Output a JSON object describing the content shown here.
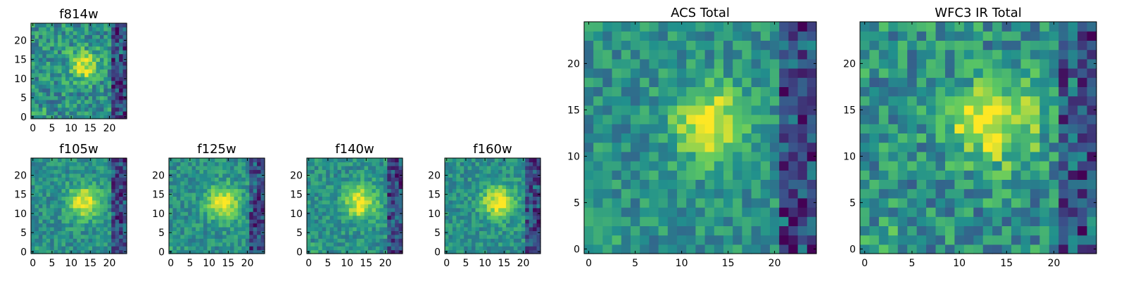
{
  "chart_data": [
    {
      "type": "heatmap",
      "title": "f814w",
      "xlim": [
        0,
        25
      ],
      "ylim": [
        0,
        25
      ],
      "xticks": [
        0,
        5,
        10,
        15,
        20
      ],
      "yticks": [
        0,
        5,
        10,
        15,
        20
      ],
      "peak": [
        13,
        13.5
      ],
      "sigma": 2.6,
      "noise": 0.2,
      "seed": 11,
      "dark_right_edge": true
    },
    {
      "type": "heatmap",
      "title": "f105w",
      "xlim": [
        0,
        25
      ],
      "ylim": [
        0,
        25
      ],
      "xticks": [
        0,
        5,
        10,
        15,
        20
      ],
      "yticks": [
        0,
        5,
        10,
        15,
        20
      ],
      "peak": [
        13.5,
        13
      ],
      "sigma": 3.0,
      "noise": 0.14,
      "seed": 23,
      "dark_right_edge": true
    },
    {
      "type": "heatmap",
      "title": "f125w",
      "xlim": [
        0,
        25
      ],
      "ylim": [
        0,
        25
      ],
      "xticks": [
        0,
        5,
        10,
        15,
        20
      ],
      "yticks": [
        0,
        5,
        10,
        15,
        20
      ],
      "peak": [
        13.5,
        13
      ],
      "sigma": 3.0,
      "noise": 0.14,
      "seed": 37,
      "dark_right_edge": true
    },
    {
      "type": "heatmap",
      "title": "f140w",
      "xlim": [
        0,
        25
      ],
      "ylim": [
        0,
        25
      ],
      "xticks": [
        0,
        5,
        10,
        15,
        20
      ],
      "yticks": [
        0,
        5,
        10,
        15,
        20
      ],
      "peak": [
        13.5,
        13
      ],
      "sigma": 3.0,
      "noise": 0.14,
      "seed": 41,
      "dark_right_edge": true
    },
    {
      "type": "heatmap",
      "title": "f160w",
      "xlim": [
        0,
        25
      ],
      "ylim": [
        0,
        25
      ],
      "xticks": [
        0,
        5,
        10,
        15,
        20
      ],
      "yticks": [
        0,
        5,
        10,
        15,
        20
      ],
      "peak": [
        13.5,
        13
      ],
      "sigma": 3.0,
      "noise": 0.14,
      "seed": 53,
      "dark_right_edge": true
    },
    {
      "type": "heatmap",
      "title": "ACS Total",
      "xlim": [
        0,
        25
      ],
      "ylim": [
        0,
        25
      ],
      "xticks": [
        0,
        5,
        10,
        15,
        20
      ],
      "yticks": [
        0,
        5,
        10,
        15,
        20
      ],
      "peak": [
        13,
        13.5
      ],
      "sigma": 2.8,
      "noise": 0.16,
      "seed": 67,
      "dark_right_edge": true
    },
    {
      "type": "heatmap",
      "title": "WFC3 IR Total",
      "xlim": [
        0,
        25
      ],
      "ylim": [
        0,
        25
      ],
      "xticks": [
        0,
        5,
        10,
        15,
        20
      ],
      "yticks": [
        0,
        5,
        10,
        15,
        20
      ],
      "peak": [
        13.5,
        13.5
      ],
      "sigma": 3.2,
      "noise": 0.22,
      "seed": 79,
      "dark_right_edge": true
    }
  ],
  "colormap": "viridis",
  "colormap_stops": [
    "#440154",
    "#3b528b",
    "#21908d",
    "#5dc962",
    "#fde725"
  ]
}
